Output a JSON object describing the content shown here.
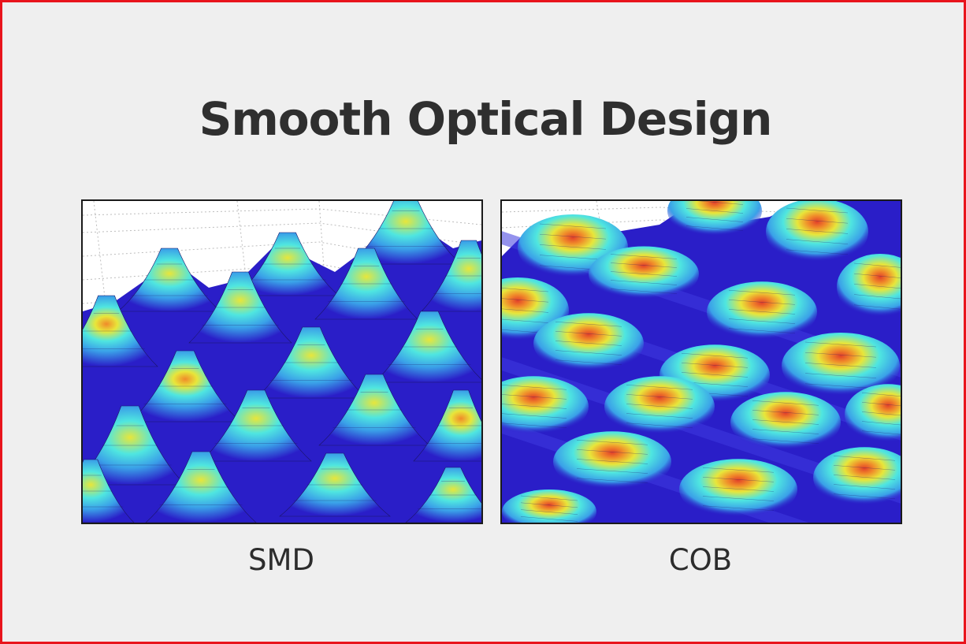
{
  "title": "Smooth Optical Design",
  "panels": [
    {
      "label": "SMD"
    },
    {
      "label": "COB"
    }
  ],
  "colors": {
    "frame_border": "#e8141c",
    "background": "#efefef",
    "surface_low": "#2a1ec8",
    "surface_mid": "#3aa0e8",
    "surface_high": "#4fe6e0",
    "peak_yellow": "#e8e63a",
    "peak_orange": "#f08a2a",
    "peak_red": "#e2402a"
  }
}
